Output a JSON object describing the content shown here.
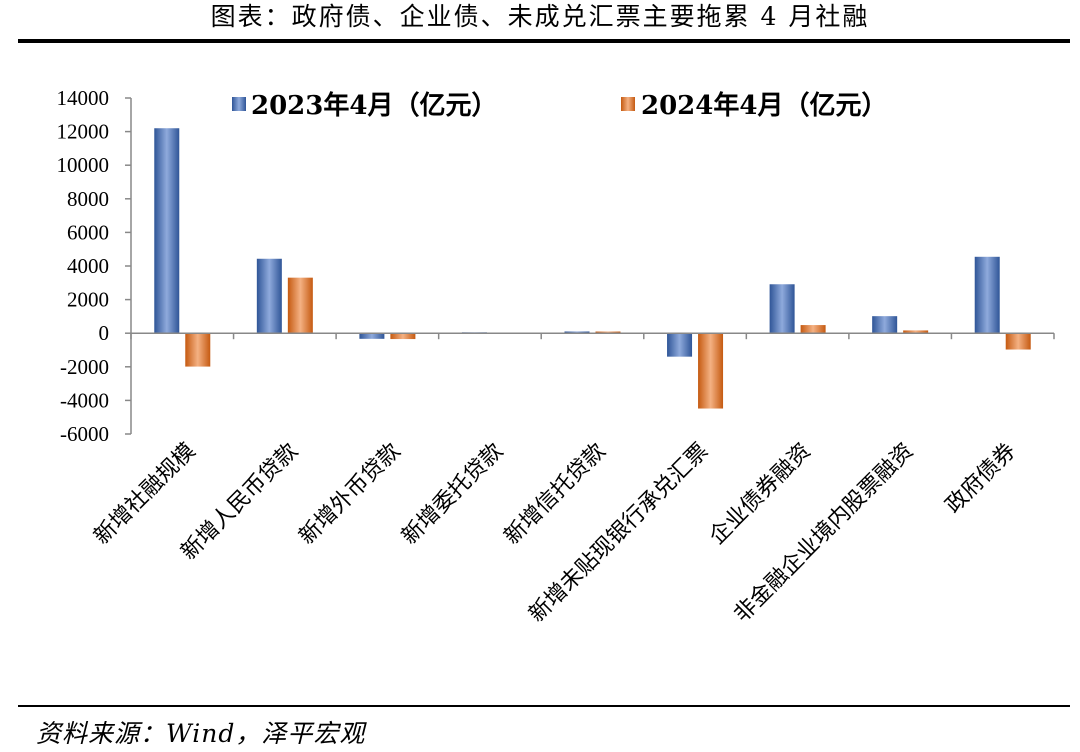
{
  "title": "图表：政府债、企业债、未成兑汇票主要拖累 4 月社融",
  "source": "资料来源：Wind，泽平宏观",
  "colors": {
    "series1": "#4472C4",
    "series2": "#ED7D31"
  },
  "chart_data": {
    "type": "bar",
    "categories": [
      "新增社融规模",
      "新增人民币贷款",
      "新增外币贷款",
      "新增委托贷款",
      "新增信托贷款",
      "新增未贴现银行承兑汇票",
      "企业债券融资",
      "非金融企业境内股票融资",
      "政府债券"
    ],
    "series": [
      {
        "name": "2023年4月（亿元）",
        "values": [
          12200,
          4431,
          -335,
          54,
          103,
          -1397,
          2913,
          1014,
          4548
        ]
      },
      {
        "name": "2024年4月（亿元）",
        "values": [
          -1987,
          3306,
          -349,
          41,
          100,
          -4484,
          484,
          166,
          -972
        ]
      }
    ],
    "yticks": [
      14000,
      12000,
      10000,
      8000,
      6000,
      4000,
      2000,
      0,
      -2000,
      -4000,
      -6000
    ],
    "ylim": [
      -6000,
      14000
    ],
    "legend": "top",
    "grid": false
  }
}
